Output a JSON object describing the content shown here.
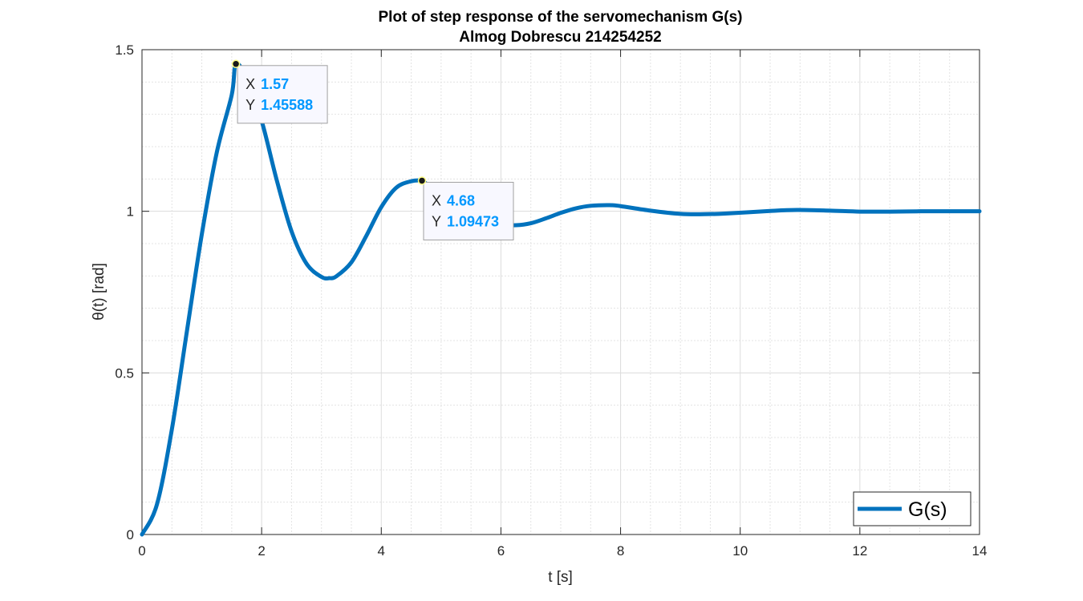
{
  "chart_data": {
    "type": "line",
    "title": "Plot of step response of the servomechanism G(s)",
    "subtitle": "Almog Dobrescu 214254252",
    "xlabel": "t [s]",
    "ylabel": "θ(t) [rad]",
    "xlim": [
      0,
      14
    ],
    "ylim": [
      0,
      1.5
    ],
    "xticks": [
      "0",
      "2",
      "4",
      "6",
      "8",
      "10",
      "12",
      "14"
    ],
    "yticks": [
      "0",
      "0.5",
      "1",
      "1.5"
    ],
    "grid": true,
    "minor_grid": true,
    "legend_position": "bottom-right",
    "series": [
      {
        "name": "G(s)",
        "color": "#0072bd",
        "x": [
          0,
          0.25,
          0.5,
          0.75,
          1.0,
          1.25,
          1.5,
          1.57,
          1.75,
          2.0,
          2.25,
          2.5,
          2.75,
          3.0,
          3.13,
          3.25,
          3.5,
          3.75,
          4.0,
          4.25,
          4.5,
          4.68,
          4.75,
          5.0,
          5.25,
          5.5,
          5.75,
          6.0,
          6.26,
          6.5,
          6.75,
          7.0,
          7.25,
          7.5,
          7.82,
          8.0,
          8.5,
          9.0,
          9.39,
          9.75,
          10.5,
          10.95,
          11.5,
          12.0,
          12.52,
          13.0,
          13.5,
          14.0
        ],
        "y": [
          0,
          0.093,
          0.326,
          0.628,
          0.929,
          1.182,
          1.36,
          1.4559,
          1.409,
          1.28,
          1.098,
          0.938,
          0.838,
          0.797,
          0.793,
          0.799,
          0.842,
          0.924,
          1.013,
          1.073,
          1.093,
          1.0947,
          1.086,
          1.06,
          1.027,
          0.995,
          0.972,
          0.96,
          0.957,
          0.963,
          0.978,
          0.995,
          1.009,
          1.017,
          1.019,
          1.016,
          1.002,
          0.992,
          0.991,
          0.993,
          1.001,
          1.004,
          1.002,
          0.999,
          0.999,
          1.0,
          1.0,
          1.0
        ]
      }
    ],
    "datatips": [
      {
        "x_key": "X",
        "x_val": "1.57",
        "y_key": "Y",
        "y_val": "1.45588",
        "x": 1.57,
        "y": 1.45588
      },
      {
        "x_key": "X",
        "x_val": "4.68",
        "y_key": "Y",
        "y_val": "1.09473",
        "x": 4.68,
        "y": 1.09473
      }
    ]
  }
}
